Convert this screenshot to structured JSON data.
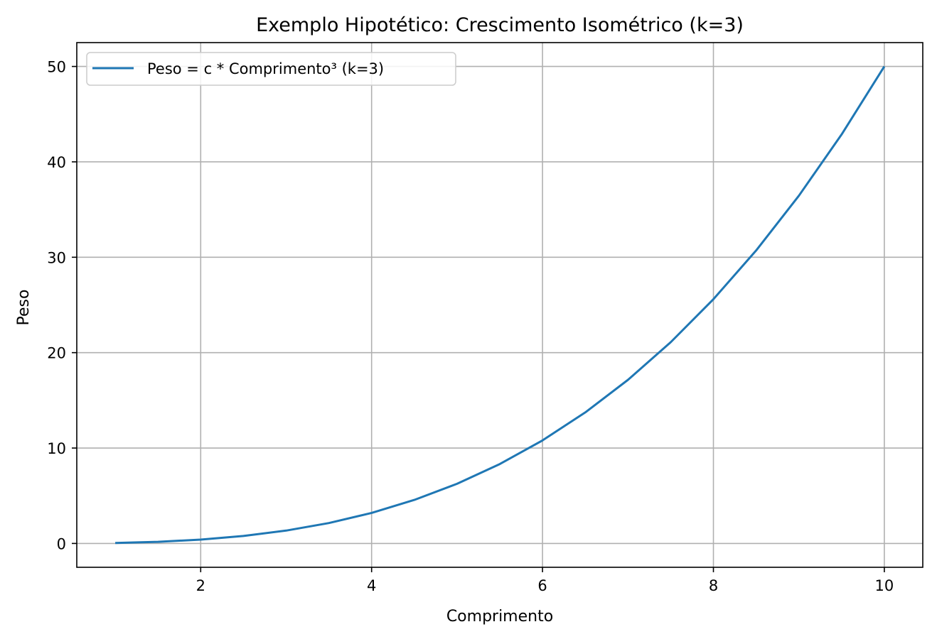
{
  "chart_data": {
    "type": "line",
    "title": "Exemplo Hipotético: Crescimento Isométrico (k=3)",
    "xlabel": "Comprimento",
    "ylabel": "Peso",
    "xlim": [
      0.55,
      10.45
    ],
    "ylim": [
      -2.5,
      52.5
    ],
    "xticks": [
      2,
      4,
      6,
      8,
      10
    ],
    "yticks": [
      0,
      10,
      20,
      30,
      40,
      50
    ],
    "grid": true,
    "legend_position": "upper-left",
    "series": [
      {
        "name": "Peso = c * Comprimento³ (k=3)",
        "color": "#1f77b4",
        "x": [
          1,
          1.5,
          2,
          2.5,
          3,
          3.5,
          4,
          4.5,
          5,
          5.5,
          6,
          6.5,
          7,
          7.5,
          8,
          8.5,
          9,
          9.5,
          10
        ],
        "y": [
          0.05,
          0.17,
          0.4,
          0.78,
          1.35,
          2.14,
          3.2,
          4.56,
          6.25,
          8.32,
          10.8,
          13.73,
          17.15,
          21.09,
          25.6,
          30.71,
          36.45,
          42.87,
          50.0
        ]
      }
    ]
  }
}
